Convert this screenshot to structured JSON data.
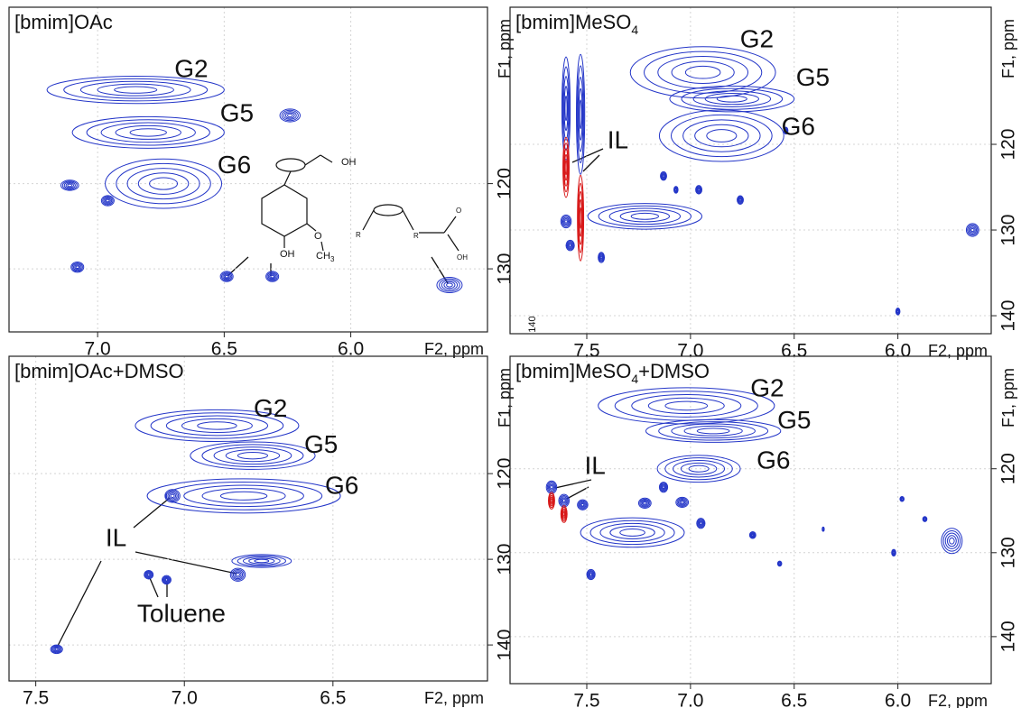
{
  "chart_data": [
    {
      "type": "contour",
      "title": [
        {
          "text": "[bmim]OAc"
        }
      ],
      "x_label": "F2, ppm",
      "y_label": "F1, ppm",
      "xlim": [
        7.35,
        5.46
      ],
      "ylim": [
        137.4,
        99.3
      ],
      "xticks": [
        {
          "value": 7,
          "label": "7.0"
        },
        {
          "value": 6.5,
          "label": "6.5"
        },
        {
          "value": 6,
          "label": "6.0"
        }
      ],
      "yticks": [
        120,
        130
      ],
      "grid": true,
      "positive_color": "#2436c8",
      "negative_color": "#d81818",
      "peaks": {
        "x": [
          6.85,
          6.8,
          6.74,
          6.24,
          7.11,
          7.08,
          6.49,
          6.31,
          5.61,
          6.96
        ],
        "y": [
          109,
          114,
          120,
          112,
          120.2,
          129.8,
          130.9,
          130.9,
          131.9,
          122
        ],
        "dx": [
          0.7,
          0.6,
          0.46,
          0.08,
          0.07,
          0.05,
          0.05,
          0.05,
          0.1,
          0.05
        ],
        "dy": [
          3.2,
          3.7,
          5.8,
          1.5,
          1.2,
          1.2,
          1.2,
          1.2,
          1.8,
          1.2
        ]
      },
      "labels": [
        {
          "text": "G2",
          "x": 6.63,
          "y": 106.7
        },
        {
          "text": "G5",
          "x": 6.45,
          "y": 111.9
        },
        {
          "text": "G6",
          "x": 6.46,
          "y": 118
        }
      ],
      "structure_labels": [
        "OH",
        "OH",
        "O",
        "CH",
        "3",
        "R",
        "R",
        "O",
        "OH"
      ]
    },
    {
      "type": "contour",
      "title": [
        {
          "text": "[bmim]MeSO"
        },
        {
          "text": "4",
          "sub": true
        }
      ],
      "x_label": "F2, ppm",
      "y_label": "F1, ppm",
      "xlim": [
        7.87,
        5.55
      ],
      "ylim": [
        142.1,
        104
      ],
      "xticks": [
        {
          "value": 7.5,
          "label": "7.5"
        },
        {
          "value": 7,
          "label": "7.0"
        },
        {
          "value": 6.5,
          "label": "6.5"
        },
        {
          "value": 6,
          "label": "6.0"
        }
      ],
      "yticks": [
        120,
        130,
        140
      ],
      "grid": true,
      "positive_color": "#2436c8",
      "negative_color": "#d81818",
      "peaks": {
        "x": [
          6.94,
          6.8,
          6.85,
          7.6,
          7.53,
          7.22,
          7.6,
          7.58,
          7.43,
          7.13,
          6.96,
          6.76,
          5.64,
          6.0,
          6.54,
          7.07
        ],
        "y": [
          111.6,
          114.7,
          119,
          115.8,
          116.5,
          128.4,
          129,
          131.8,
          133.2,
          123.7,
          125.3,
          126.5,
          130,
          139.5,
          118.4,
          125.3
        ],
        "dx": [
          0.7,
          0.6,
          0.6,
          0.04,
          0.04,
          0.55,
          0.05,
          0.04,
          0.03,
          0.03,
          0.03,
          0.03,
          0.06,
          0.02,
          0.02,
          0.02
        ],
        "dy": [
          6,
          3,
          6,
          12,
          14,
          3,
          1.5,
          1.2,
          1.2,
          1,
          1,
          1,
          1.5,
          0.8,
          0.8,
          0.8
        ]
      },
      "negative_peaks": {
        "x": [
          7.6,
          7.53
        ],
        "y": [
          122.7,
          128.6
        ],
        "dx": [
          0.03,
          0.03
        ],
        "dy": [
          7,
          10
        ]
      },
      "labels": [
        {
          "text": "G2",
          "x": 6.68,
          "y": 107.9
        },
        {
          "text": "G5",
          "x": 6.41,
          "y": 112.4
        },
        {
          "text": "G6",
          "x": 6.48,
          "y": 118.1
        },
        {
          "text": "IL",
          "x": 7.35,
          "y": 119.7
        },
        {
          "text": "140",
          "x": 7.76,
          "y": 141,
          "small": true
        }
      ]
    },
    {
      "type": "contour",
      "title": [
        {
          "text": "[bmim]OAc+DMSO"
        }
      ],
      "x_label": "F2, ppm",
      "y_label": "F1, ppm",
      "xlim": [
        7.59,
        5.98
      ],
      "ylim": [
        144.2,
        106.3
      ],
      "xticks": [
        {
          "value": 7.5,
          "label": "7.5"
        },
        {
          "value": 7,
          "label": "7.0"
        },
        {
          "value": 6.5,
          "label": "6.5"
        }
      ],
      "yticks": [
        120,
        130,
        140
      ],
      "grid": true,
      "positive_color": "#2436c8",
      "negative_color": "#d81818",
      "peaks": {
        "x": [
          6.89,
          6.77,
          6.8,
          7.04,
          6.82,
          6.74,
          7.12,
          7.06,
          7.43
        ],
        "y": [
          114.4,
          117.9,
          122.6,
          122.6,
          131.8,
          130.2,
          131.8,
          132.4,
          140.5
        ],
        "dx": [
          0.55,
          0.42,
          0.65,
          0.05,
          0.05,
          0.2,
          0.03,
          0.03,
          0.04
        ],
        "dy": [
          3.7,
          3.2,
          4,
          1.5,
          1.5,
          1.5,
          1,
          1,
          1
        ]
      },
      "labels": [
        {
          "text": "G2",
          "x": 6.71,
          "y": 112.6
        },
        {
          "text": "G5",
          "x": 6.54,
          "y": 116.8
        },
        {
          "text": "G6",
          "x": 6.47,
          "y": 121.6
        },
        {
          "text": "IL",
          "x": 7.23,
          "y": 127.7
        },
        {
          "text": "Toluene",
          "x": 7.01,
          "y": 136.5
        }
      ]
    },
    {
      "type": "contour",
      "title": [
        {
          "text": "[bmim]MeSO"
        },
        {
          "text": "4",
          "sub": true
        },
        {
          "text": "+DMSO"
        }
      ],
      "x_label": "F2, ppm",
      "y_label": "F1, ppm",
      "xlim": [
        7.87,
        5.55
      ],
      "ylim": [
        145.6,
        106.6
      ],
      "xticks": [
        {
          "value": 7.5,
          "label": "7.5"
        },
        {
          "value": 7,
          "label": "7.0"
        },
        {
          "value": 6.5,
          "label": "6.5"
        },
        {
          "value": 6,
          "label": "6.0"
        }
      ],
      "yticks": [
        120,
        130,
        140
      ],
      "grid": true,
      "positive_color": "#2436c8",
      "negative_color": "#d81818",
      "peaks": {
        "x": [
          7.02,
          6.89,
          6.96,
          7.67,
          7.61,
          7.28,
          7.52,
          7.22,
          7.13,
          7.04,
          6.95,
          7.48,
          6.7,
          6.57,
          5.74,
          6.02,
          5.87,
          5.98,
          6.36
        ],
        "y": [
          112.5,
          115.5,
          120,
          122.2,
          123.8,
          127.6,
          124.3,
          124.1,
          122.2,
          124,
          126.5,
          132.6,
          127.9,
          131.3,
          128.6,
          130,
          126,
          123.6,
          127.2
        ],
        "dx": [
          0.85,
          0.65,
          0.4,
          0.05,
          0.05,
          0.5,
          0.05,
          0.06,
          0.04,
          0.06,
          0.04,
          0.04,
          0.03,
          0.02,
          0.1,
          0.02,
          0.02,
          0.02,
          0.01
        ],
        "dy": [
          4.3,
          2.7,
          3.2,
          1.5,
          1.5,
          3.5,
          1.2,
          1.2,
          1.2,
          1.2,
          1.2,
          1.2,
          0.8,
          0.6,
          3,
          0.8,
          0.6,
          0.6,
          0.5
        ]
      },
      "negative_peaks": {
        "x": [
          7.67,
          7.61
        ],
        "y": [
          123.8,
          125.4
        ],
        "dx": [
          0.03,
          0.03
        ],
        "dy": [
          2,
          2
        ]
      },
      "labels": [
        {
          "text": "G2",
          "x": 6.63,
          "y": 110.6
        },
        {
          "text": "G5",
          "x": 6.5,
          "y": 114.4
        },
        {
          "text": "G6",
          "x": 6.6,
          "y": 119.2
        },
        {
          "text": "IL",
          "x": 7.46,
          "y": 119.8
        }
      ]
    }
  ]
}
